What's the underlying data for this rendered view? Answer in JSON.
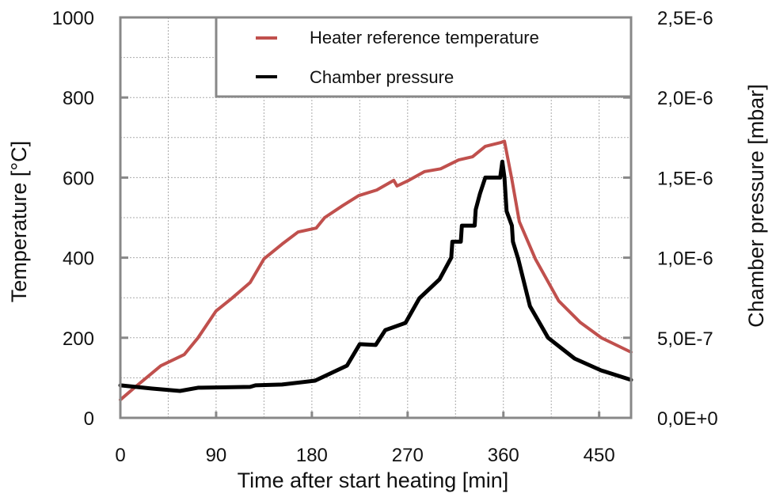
{
  "chart_data": {
    "type": "line",
    "title": "",
    "xlabel": "Time after start heating [min]",
    "ylabel": "Temperature [°C]",
    "y2label": "Chamber pressure [mbar]",
    "xlim": [
      0,
      480
    ],
    "ylim": [
      0,
      1000
    ],
    "y2lim": [
      0,
      2.5e-06
    ],
    "xticks": [
      0,
      90,
      180,
      270,
      360,
      450
    ],
    "xtick_labels": [
      "0",
      "90",
      "180",
      "270",
      "360",
      "450"
    ],
    "yticks": [
      0,
      200,
      400,
      600,
      800,
      1000
    ],
    "ytick_labels": [
      "0",
      "200",
      "400",
      "600",
      "800",
      "1000"
    ],
    "y2ticks": [
      0,
      5e-07,
      1e-06,
      1.5e-06,
      2e-06,
      2.5e-06
    ],
    "y2tick_labels": [
      "0,0E+0",
      "5,0E-7",
      "1,0E-6",
      "1,5E-6",
      "2,0E-6",
      "2,5E-6"
    ],
    "grid": true,
    "grid_x_step": 45,
    "grid_y_step": 100,
    "legend_position": "top-right",
    "series": [
      {
        "name": "Heater reference temperature",
        "axis": "left",
        "color": "#c0504d",
        "x": [
          0,
          13,
          38,
          60,
          73,
          90,
          105,
          122,
          135,
          152,
          167,
          184,
          192,
          209,
          224,
          241,
          257,
          260,
          271,
          286,
          301,
          318,
          331,
          343,
          358,
          361,
          368,
          375,
          390,
          412,
          432,
          452,
          480
        ],
        "y": [
          45,
          75,
          130,
          158,
          200,
          267,
          299,
          338,
          397,
          434,
          464,
          474,
          500,
          530,
          555,
          569,
          593,
          579,
          593,
          615,
          622,
          644,
          652,
          678,
          688,
          691,
          595,
          490,
          397,
          292,
          239,
          200,
          164
        ]
      },
      {
        "name": "Chamber pressure",
        "axis": "right",
        "color": "#000000",
        "x": [
          0,
          30,
          56,
          73,
          122,
          127,
          152,
          183,
          213,
          225,
          240,
          249,
          268,
          281,
          300,
          311,
          312,
          320,
          321,
          333,
          334,
          338,
          343,
          357,
          359,
          361,
          363,
          368,
          369,
          374,
          385,
          402,
          427,
          452,
          480
        ],
        "y": [
          2.03e-07,
          1.83e-07,
          1.68e-07,
          1.88e-07,
          1.93e-07,
          2.03e-07,
          2.08e-07,
          2.32e-07,
          3.26e-07,
          4.6e-07,
          4.55e-07,
          5.48e-07,
          5.93e-07,
          7.46e-07,
          8.65e-07,
          1e-06,
          1.1e-06,
          1.1e-06,
          1.2e-06,
          1.2e-06,
          1.3e-06,
          1.4e-06,
          1.5e-06,
          1.5e-06,
          1.6e-06,
          1.5e-06,
          1.29e-06,
          1.2e-06,
          1.1e-06,
          9.9e-07,
          6.97e-07,
          5e-07,
          3.7e-07,
          2.96e-07,
          2.37e-07
        ]
      }
    ]
  }
}
